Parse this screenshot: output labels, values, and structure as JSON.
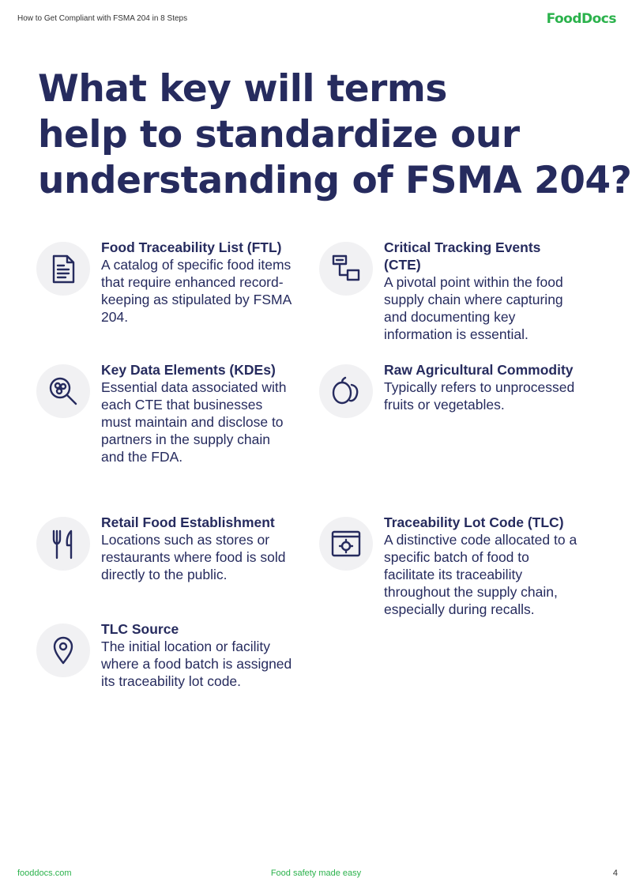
{
  "header": {
    "doc_title": "How to Get Compliant with FSMA 204 in 8 Steps",
    "logo": "FoodDocs"
  },
  "title_lines": [
    "What key will terms",
    "help to standardize our",
    "understanding of FSMA 204?"
  ],
  "terms": [
    {
      "title": "Food Traceability List (FTL)",
      "text": "A catalog of specific food items that require enhanced record-keeping as stipulated by FSMA 204."
    },
    {
      "title": "Critical Tracking Events (CTE)",
      "text": "A pivotal point within the food supply chain where capturing and documenting key information is essential."
    },
    {
      "title": "Key Data Elements (KDEs)",
      "text": "Essential data associated with each CTE that businesses must maintain and disclose to partners in the supply chain and the FDA."
    },
    {
      "title": "Raw Agricultural Commodity",
      "text": "Typically refers to unprocessed fruits or vegetables."
    },
    {
      "title": "Retail Food Establishment",
      "text": "Locations such as stores or restaurants where food is sold directly to the public."
    },
    {
      "title": "Traceability Lot Code (TLC)",
      "text": "A distinctive code allocated to a specific batch of food to facilitate its traceability throughout the supply chain, especially during recalls."
    },
    {
      "title": "TLC Source",
      "text": "The initial location or facility where a food batch is assigned its traceability lot code."
    }
  ],
  "footer": {
    "site": "fooddocs.com",
    "tagline": "Food safety made easy",
    "page": "4"
  }
}
